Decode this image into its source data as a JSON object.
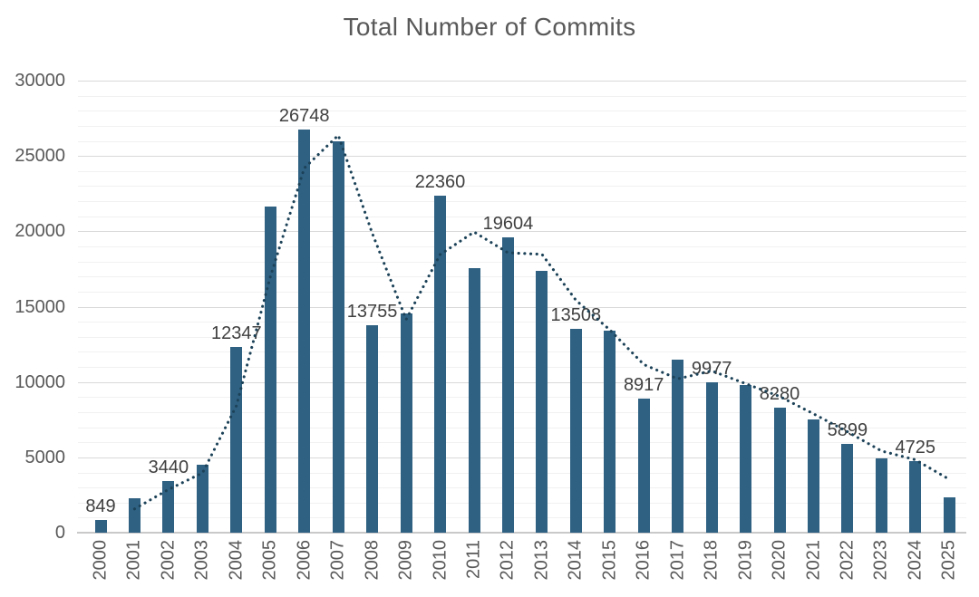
{
  "chart_data": {
    "type": "bar",
    "title": "Total Number of Commits",
    "categories": [
      2000,
      2001,
      2002,
      2003,
      2004,
      2005,
      2006,
      2007,
      2008,
      2009,
      2010,
      2011,
      2012,
      2013,
      2014,
      2015,
      2016,
      2017,
      2018,
      2019,
      2020,
      2021,
      2022,
      2023,
      2024,
      2025
    ],
    "values": [
      849,
      2300,
      3440,
      4500,
      12347,
      21650,
      26748,
      26000,
      13755,
      14550,
      22360,
      17550,
      19604,
      17350,
      13508,
      13400,
      8917,
      11500,
      9977,
      9800,
      8280,
      7500,
      5899,
      4950,
      4725,
      2350
    ],
    "data_labels": [
      "849",
      null,
      "3440",
      null,
      "12347",
      null,
      "26748",
      null,
      "13755",
      null,
      "22360",
      null,
      "19604",
      null,
      "13508",
      null,
      "8917",
      null,
      "9977",
      null,
      "8280",
      null,
      "5899",
      null,
      "4725",
      null
    ],
    "y_ticks": [
      0,
      5000,
      10000,
      15000,
      20000,
      25000,
      30000
    ],
    "ylim": [
      0,
      30000
    ],
    "y_major_step": 5000,
    "y_minor_step": 1000,
    "grid": "horizontal",
    "legend": "none",
    "trendline": {
      "type": "moving_average",
      "period": 2,
      "style": "dotted"
    },
    "colors": {
      "bar": "#2f6183",
      "trend": "#1c4258",
      "title_text": "#595959",
      "axis_text": "#595959",
      "data_label_text": "#404040",
      "gridline_major": "#d9d9d9",
      "gridline_minor": "#f1f1f1",
      "axis_line": "#c9c9c9",
      "background": "#ffffff"
    }
  }
}
